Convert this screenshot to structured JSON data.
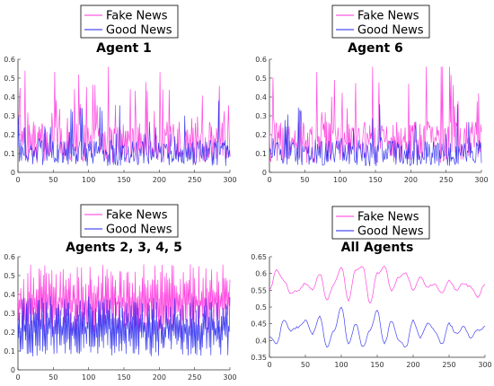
{
  "figure": {
    "panel_count": 4
  },
  "colors": {
    "fake": "#ff33dd",
    "good": "#2222ee",
    "axis": "#333333"
  },
  "chart_data": [
    {
      "type": "line",
      "title": "Agent 1",
      "xlabel": "",
      "ylabel": "",
      "xlim": [
        0,
        300
      ],
      "ylim": [
        0,
        0.6
      ],
      "xticks": [
        0,
        50,
        100,
        150,
        200,
        250,
        300
      ],
      "yticks": [
        0,
        0.1,
        0.2,
        0.3,
        0.4,
        0.5,
        0.6
      ],
      "legend": {
        "placement": "above",
        "entries": [
          "Fake News",
          "Good News"
        ]
      },
      "series": [
        {
          "name": "Fake News",
          "color": "#ff33dd",
          "style": "noisy",
          "mean": 0.17,
          "amplitude": 0.22,
          "peak_max": 0.56,
          "min": 0.0
        },
        {
          "name": "Good News",
          "color": "#2222ee",
          "style": "noisy",
          "mean": 0.11,
          "amplitude": 0.14,
          "peak_max": 0.38,
          "min": 0.0
        }
      ]
    },
    {
      "type": "line",
      "title": "Agent 6",
      "xlabel": "",
      "ylabel": "",
      "xlim": [
        0,
        300
      ],
      "ylim": [
        0,
        0.6
      ],
      "xticks": [
        0,
        50,
        100,
        150,
        200,
        250,
        300
      ],
      "yticks": [
        0,
        0.1,
        0.2,
        0.3,
        0.4,
        0.5,
        0.6
      ],
      "legend": {
        "placement": "above",
        "entries": [
          "Fake News",
          "Good News"
        ]
      },
      "series": [
        {
          "name": "Fake News",
          "color": "#ff33dd",
          "style": "noisy",
          "mean": 0.17,
          "amplitude": 0.22,
          "peak_max": 0.56,
          "min": 0.0
        },
        {
          "name": "Good News",
          "color": "#2222ee",
          "style": "noisy",
          "mean": 0.11,
          "amplitude": 0.14,
          "peak_max": 0.36,
          "min": 0.0
        }
      ]
    },
    {
      "type": "line",
      "title": "Agents 2, 3, 4, 5",
      "xlabel": "",
      "ylabel": "",
      "xlim": [
        0,
        300
      ],
      "ylim": [
        0,
        0.6
      ],
      "xticks": [
        0,
        50,
        100,
        150,
        200,
        250,
        300
      ],
      "yticks": [
        0,
        0.1,
        0.2,
        0.3,
        0.4,
        0.5,
        0.6
      ],
      "legend": {
        "placement": "above",
        "entries": [
          "Fake News",
          "Good News"
        ]
      },
      "series": [
        {
          "name": "Fake News",
          "color": "#ff33dd",
          "style": "dense",
          "mean": 0.36,
          "amplitude": 0.2,
          "peak_max": 0.58,
          "min": 0.12
        },
        {
          "name": "Good News",
          "color": "#2222ee",
          "style": "dense",
          "mean": 0.22,
          "amplitude": 0.17,
          "peak_max": 0.42,
          "min": 0.02
        }
      ]
    },
    {
      "type": "line",
      "title": "All Agents",
      "xlabel": "",
      "ylabel": "",
      "xlim": [
        0,
        300
      ],
      "ylim": [
        0.35,
        0.65
      ],
      "xticks": [
        0,
        50,
        100,
        150,
        200,
        250,
        300
      ],
      "yticks": [
        0.35,
        0.4,
        0.45,
        0.5,
        0.55,
        0.6,
        0.65
      ],
      "legend": {
        "placement": "above",
        "entries": [
          "Fake News",
          "Good News"
        ]
      },
      "series": [
        {
          "name": "Fake News",
          "color": "#ff33dd",
          "style": "smooth",
          "x": [
            0,
            10,
            20,
            30,
            40,
            50,
            60,
            70,
            80,
            90,
            100,
            110,
            120,
            130,
            140,
            150,
            160,
            170,
            180,
            190,
            200,
            210,
            220,
            230,
            240,
            250,
            260,
            270,
            280,
            290,
            300
          ],
          "y": [
            0.55,
            0.61,
            0.58,
            0.54,
            0.55,
            0.57,
            0.55,
            0.6,
            0.52,
            0.57,
            0.62,
            0.52,
            0.61,
            0.62,
            0.51,
            0.6,
            0.62,
            0.55,
            0.59,
            0.6,
            0.55,
            0.59,
            0.56,
            0.57,
            0.54,
            0.58,
            0.55,
            0.57,
            0.56,
            0.53,
            0.57
          ]
        },
        {
          "name": "Good News",
          "color": "#2222ee",
          "style": "smooth",
          "x": [
            0,
            10,
            20,
            30,
            40,
            50,
            60,
            70,
            80,
            90,
            100,
            110,
            120,
            130,
            140,
            150,
            160,
            170,
            180,
            190,
            200,
            210,
            220,
            230,
            240,
            250,
            260,
            270,
            280,
            290,
            300
          ],
          "y": [
            0.41,
            0.39,
            0.46,
            0.43,
            0.44,
            0.46,
            0.42,
            0.47,
            0.38,
            0.43,
            0.5,
            0.39,
            0.45,
            0.38,
            0.43,
            0.49,
            0.39,
            0.46,
            0.4,
            0.38,
            0.46,
            0.41,
            0.45,
            0.43,
            0.39,
            0.45,
            0.42,
            0.44,
            0.41,
            0.43,
            0.44
          ]
        }
      ]
    }
  ]
}
